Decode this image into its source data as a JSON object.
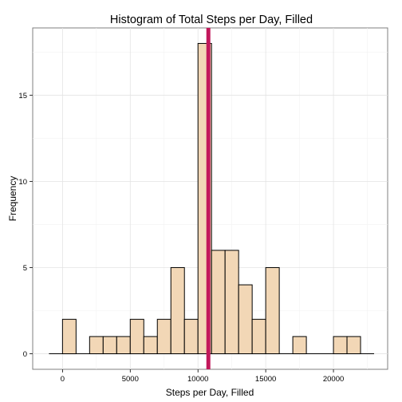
{
  "chart_data": {
    "type": "bar",
    "title": "Histogram of Total Steps per Day, Filled",
    "xlabel": "Steps per Day, Filled",
    "ylabel": "Frequency",
    "bin_width": 1000,
    "bins": [
      {
        "x": 500,
        "count": 2
      },
      {
        "x": 2500,
        "count": 1
      },
      {
        "x": 3500,
        "count": 1
      },
      {
        "x": 4500,
        "count": 1
      },
      {
        "x": 5500,
        "count": 2
      },
      {
        "x": 6500,
        "count": 1
      },
      {
        "x": 7500,
        "count": 2
      },
      {
        "x": 8500,
        "count": 5
      },
      {
        "x": 9500,
        "count": 2
      },
      {
        "x": 10500,
        "count": 18
      },
      {
        "x": 11500,
        "count": 6
      },
      {
        "x": 12500,
        "count": 6
      },
      {
        "x": 13500,
        "count": 4
      },
      {
        "x": 14500,
        "count": 2
      },
      {
        "x": 15500,
        "count": 5
      },
      {
        "x": 17500,
        "count": 1
      },
      {
        "x": 20500,
        "count": 1
      },
      {
        "x": 21500,
        "count": 1
      }
    ],
    "baseline_range": [
      -1000,
      23000
    ],
    "mean_line": {
      "x": 10766,
      "color": "#c2185b"
    },
    "xlim": [
      -2200,
      24000
    ],
    "ylim": [
      -0.9,
      18.9
    ],
    "x_ticks": [
      0,
      5000,
      10000,
      15000,
      20000
    ],
    "x_tick_labels": [
      "0",
      "5000",
      "10000",
      "15000",
      "20000"
    ],
    "y_ticks": [
      0,
      5,
      10,
      15
    ],
    "y_tick_labels": [
      "0",
      "5",
      "10",
      "15"
    ],
    "bar_fill": "#f2d7b6",
    "bar_outline": "#000000",
    "grid": true,
    "legend": "none"
  }
}
